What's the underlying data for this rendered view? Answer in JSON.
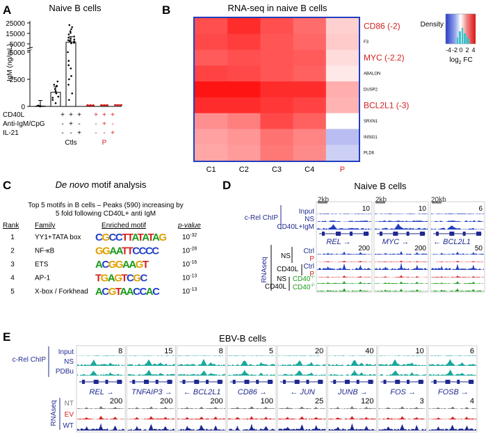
{
  "panels": {
    "A": {
      "letter": "A",
      "title": "Naive B cells",
      "ylabel": "IgM (ng/mL)",
      "yticks": [
        "25000",
        "15000",
        "5000",
        "5000",
        "2500",
        "0"
      ],
      "condition_labels": [
        "CD40L",
        "Anti-IgM/CpG",
        "IL-21"
      ],
      "ctl_signs": [
        [
          "+",
          "+",
          "+"
        ],
        [
          "-",
          "+",
          "-"
        ],
        [
          "-",
          "-",
          "+"
        ]
      ],
      "p_signs": [
        [
          "+",
          "+",
          "+"
        ],
        [
          "-",
          "+",
          "-"
        ],
        [
          "-",
          "-",
          "+"
        ]
      ],
      "group_ctls": "Ctls",
      "group_p": "P"
    },
    "B": {
      "letter": "B",
      "title": "RNA-seq in naive B cells",
      "legend_title": "Density",
      "legend_ticks": [
        "-4",
        "-2",
        "0",
        "2",
        "4"
      ],
      "legend_label": "log",
      "legend_label_sub": "2",
      "legend_label_tail": " FC"
    },
    "C": {
      "letter": "C",
      "title_italic": "De novo",
      "title_rest": " motif analysis",
      "subtitle_line1": "Top 5 motifs in B cells – Peaks (590) increasing by",
      "subtitle_line2": "5 fold following CD40L+ anti IgM",
      "headers": [
        "Rank",
        "Family",
        "Enriched motif",
        "p-value"
      ],
      "rows": [
        {
          "rank": "1",
          "family": "YY1+TATA box",
          "motif": "CGCCTTATATAG",
          "p_base": "10",
          "p_exp": "-32"
        },
        {
          "rank": "2",
          "family": "NF-κB",
          "motif": "GGAATTCCCC",
          "p_base": "10",
          "p_exp": "-28"
        },
        {
          "rank": "3",
          "family": "ETS",
          "motif": "ACGGAAGT",
          "p_base": "10",
          "p_exp": "-16"
        },
        {
          "rank": "4",
          "family": "AP-1",
          "motif": "TGAGTCGC",
          "p_base": "10",
          "p_exp": "-13"
        },
        {
          "rank": "5",
          "family": "X-box / Forkhead",
          "motif": "ACGTAACCAC",
          "p_base": "10",
          "p_exp": "-13"
        }
      ]
    },
    "D": {
      "letter": "D",
      "title": "Naive B cells",
      "chip_label": "c-Rel ChIP",
      "chip_tracks": [
        "Input",
        "NS",
        "CD40L+IgM"
      ],
      "rnaseq_label": "RNAseq",
      "ns_label": "NS",
      "cd40l_label": "CD40L",
      "ns_sub": "NS",
      "cd40l_sub": "CD40L",
      "track_ctrl": "Ctrl",
      "track_p": "P",
      "track_cd40": "CD40",
      "track_cd40_sup": "-/-",
      "scales": [
        "2kb",
        "2kb",
        "20kb"
      ],
      "chip_max": [
        "10",
        "10",
        "6"
      ],
      "genes": [
        "REL →",
        "MYC →",
        "← BCL2L1"
      ],
      "rna_max": [
        "200",
        "200",
        "50"
      ]
    },
    "E": {
      "letter": "E",
      "title": "EBV-B cells",
      "chip_label": "c-Rel ChIP",
      "chip_tracks": [
        "Input",
        "NS",
        "PDBu"
      ],
      "rnaseq_label": "RNAseq",
      "rna_tracks": [
        "NT",
        "EV",
        "WT"
      ],
      "chip_max": [
        "8",
        "15",
        "8",
        "5",
        "20",
        "40",
        "10",
        "6"
      ],
      "genes": [
        "REL →",
        "TNFAIP3 →",
        "← BCL2L1",
        "CD86 →",
        "← JUN",
        "JUNB →",
        "FOS →",
        "FOSB →"
      ],
      "rna_max": [
        "200",
        "200",
        "200",
        "100",
        "25",
        "120",
        "3",
        "4"
      ]
    }
  },
  "chart_data": [
    {
      "type": "bar",
      "panel": "A",
      "title": "Naive B cells",
      "ylabel": "IgM (ng/mL)",
      "categories": [
        "Ctls -/-/-",
        "Ctls +/+/-",
        "Ctls +/-/+",
        "P -/-/-",
        "P +/+/-",
        "P +/-/+"
      ],
      "values": [
        30,
        1300,
        6500,
        20,
        40,
        60
      ],
      "points": [
        [
          0,
          20,
          50,
          80,
          10
        ],
        [
          300,
          600,
          900,
          1200,
          1600,
          2000,
          2300,
          1900,
          800,
          1400
        ],
        [
          600,
          1200,
          2000,
          2800,
          3500,
          4200,
          5000,
          6000,
          7200,
          8500,
          10000,
          12000,
          14000,
          17000,
          19000,
          21000,
          23000,
          3800,
          9200,
          15500,
          2500,
          5600,
          7800,
          11000
        ]
      ]
    },
    {
      "type": "heatmap",
      "panel": "B",
      "title": "RNA-seq in naive B cells",
      "columns": [
        "C1",
        "C2",
        "C3",
        "C4",
        "P"
      ],
      "rows": [
        "CD86 (-2)",
        "F3",
        "MYC (-2.2)",
        "ABALON",
        "DUSP2",
        "BCL2L1 (-3)",
        "SRXN1",
        "INSIG1",
        "PLD6"
      ],
      "values": [
        [
          3.0,
          3.6,
          3.0,
          2.5,
          0.8
        ],
        [
          3.1,
          3.3,
          2.9,
          2.6,
          0.9
        ],
        [
          2.8,
          3.0,
          2.9,
          2.8,
          0.6
        ],
        [
          3.2,
          3.1,
          2.9,
          2.7,
          0.4
        ],
        [
          4.0,
          4.0,
          3.6,
          3.6,
          1.4
        ],
        [
          3.6,
          3.6,
          3.4,
          3.2,
          1.3
        ],
        [
          1.9,
          2.2,
          3.1,
          2.7,
          0.0
        ],
        [
          1.6,
          1.8,
          2.4,
          2.1,
          -1.4
        ],
        [
          1.5,
          1.7,
          2.3,
          2.0,
          -1.0
        ]
      ],
      "scale": [
        -4,
        4
      ]
    }
  ]
}
